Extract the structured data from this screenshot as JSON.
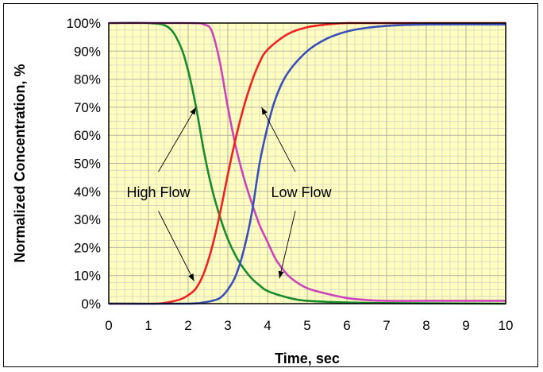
{
  "chart_data": {
    "type": "line",
    "title": "",
    "xlabel": "Time, sec",
    "ylabel": "Normalized Concentration, %",
    "xlim": [
      0,
      10
    ],
    "ylim": [
      0,
      100
    ],
    "x_ticks": [
      "0",
      "1",
      "2",
      "3",
      "4",
      "5",
      "6",
      "7",
      "8",
      "9",
      "10"
    ],
    "y_ticks": [
      "0%",
      "10%",
      "20%",
      "30%",
      "40%",
      "50%",
      "60%",
      "70%",
      "80%",
      "90%",
      "100%"
    ],
    "grid": true,
    "plot_background": "#ffffc0",
    "series": [
      {
        "color": "#1a8a2e",
        "x": [
          0,
          1,
          1.5,
          1.8,
          2.0,
          2.2,
          2.4,
          2.6,
          2.8,
          3.0,
          3.2,
          3.4,
          3.6,
          3.8,
          4.0,
          4.5,
          5.0,
          6.0,
          7.0,
          10.0
        ],
        "y": [
          100,
          100,
          98.5,
          92,
          83,
          70,
          54,
          41,
          31,
          23,
          17,
          12.5,
          9,
          6.5,
          4.5,
          2.2,
          1,
          0.4,
          0.2,
          0
        ]
      },
      {
        "color": "#cc44bb",
        "x": [
          0,
          2,
          2.4,
          2.6,
          2.8,
          3.0,
          3.2,
          3.4,
          3.6,
          3.8,
          4.0,
          4.2,
          4.4,
          4.6,
          5.0,
          5.5,
          6.0,
          6.5,
          7.0,
          8.0,
          10.0
        ],
        "y": [
          100,
          100,
          99.5,
          97,
          86,
          70,
          56,
          45,
          36,
          28,
          22,
          16,
          12,
          9,
          5.5,
          3.5,
          2,
          1.3,
          1,
          1,
          1
        ]
      },
      {
        "color": "#ee2222",
        "x": [
          0,
          1.2,
          1.5,
          1.8,
          2.0,
          2.2,
          2.4,
          2.6,
          2.8,
          3.0,
          3.2,
          3.4,
          3.6,
          3.8,
          4.0,
          4.5,
          5.0,
          5.5,
          6.0,
          6.5,
          10.0
        ],
        "y": [
          0,
          0,
          0.5,
          1.5,
          3,
          5.5,
          11,
          20,
          32,
          46,
          59,
          70,
          79,
          86,
          90.5,
          96,
          98.5,
          99.5,
          100,
          100,
          100
        ]
      },
      {
        "color": "#3a4fb8",
        "x": [
          0,
          2.0,
          2.4,
          2.6,
          2.8,
          3.0,
          3.2,
          3.4,
          3.6,
          3.8,
          4.0,
          4.2,
          4.5,
          5.0,
          5.5,
          6.0,
          6.5,
          7.0,
          8.0,
          10.0
        ],
        "y": [
          0,
          0,
          0.5,
          1,
          2,
          5,
          10,
          19,
          32,
          50,
          63,
          73,
          82,
          90,
          94.5,
          97,
          98.3,
          99,
          99.5,
          99.5
        ]
      }
    ],
    "annotations": [
      {
        "text": "High Flow",
        "x": 1.25,
        "y": 40,
        "arrows": [
          {
            "from": [
              1.25,
              47
            ],
            "to": [
              2.2,
              70
            ]
          },
          {
            "from": [
              1.25,
              33
            ],
            "to": [
              2.15,
              8
            ]
          }
        ]
      },
      {
        "text": "Low Flow",
        "x": 4.85,
        "y": 40,
        "arrows": [
          {
            "from": [
              4.7,
              47
            ],
            "to": [
              3.85,
              70
            ]
          },
          {
            "from": [
              4.7,
              33
            ],
            "to": [
              4.3,
              9
            ]
          }
        ]
      }
    ]
  }
}
